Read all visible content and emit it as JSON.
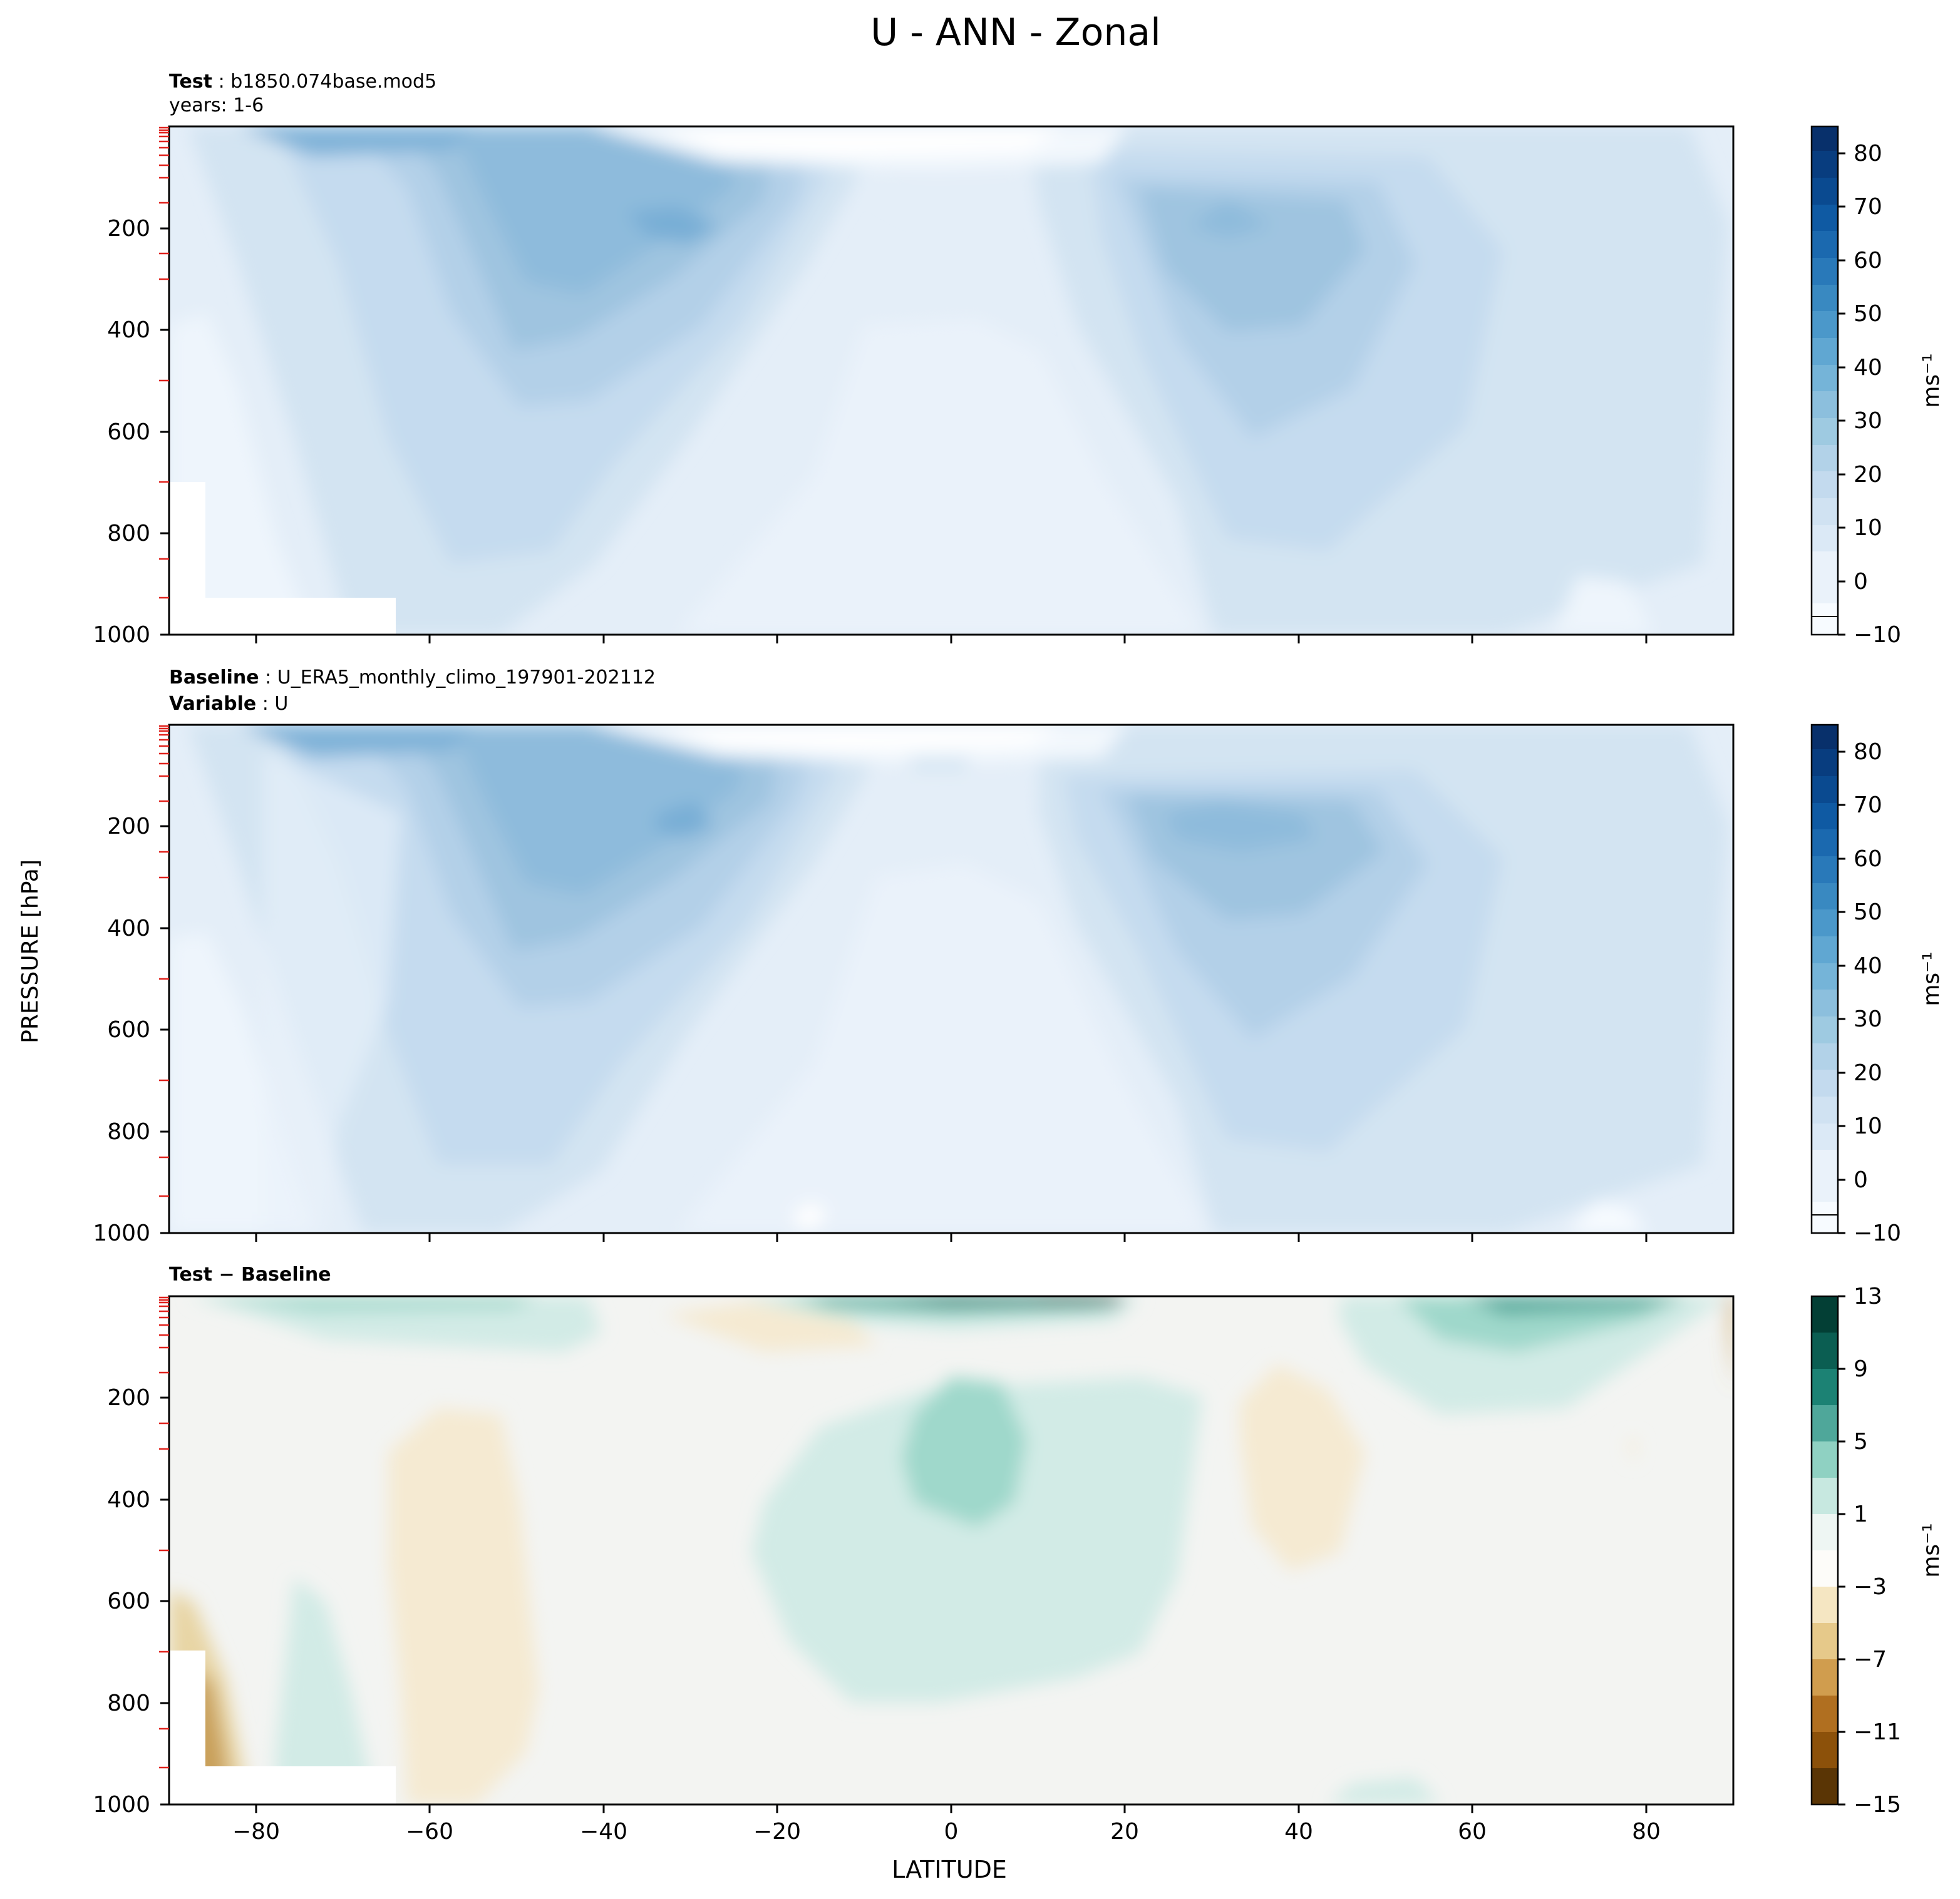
{
  "figure": {
    "title": "U - ANN - Zonal",
    "ylabel": "PRESSURE [hPa]",
    "xlabel": "LATITUDE"
  },
  "panels": [
    {
      "id": "test",
      "header": [
        {
          "bold": "Test",
          "text": " : b1850.074base.mod5"
        },
        {
          "bold": "",
          "text": "years: 1-6"
        }
      ],
      "cbar_label": "ms⁻¹"
    },
    {
      "id": "baseline",
      "header": [
        {
          "bold": "Baseline",
          "text": " : U_ERA5_monthly_climo_197901-202112"
        },
        {
          "bold": "Variable",
          "text": " : U"
        }
      ],
      "cbar_label": "ms⁻¹"
    },
    {
      "id": "diff",
      "header": [
        {
          "bold": "Test − Baseline",
          "text": ""
        }
      ],
      "cbar_label": "ms⁻¹"
    }
  ],
  "chart_data": [
    {
      "type": "heatmap",
      "panel": "test",
      "x_ticks": [
        -80,
        -60,
        -40,
        -20,
        0,
        20,
        40,
        60,
        80
      ],
      "y_ticks": [
        200,
        400,
        600,
        800,
        1000
      ],
      "xlim": [
        -90,
        90
      ],
      "ylim": [
        1000,
        0
      ],
      "colorbar_ticks": [
        -10,
        0,
        10,
        20,
        30,
        40,
        50,
        60,
        70,
        80
      ],
      "colorbar_range": [
        -10,
        85
      ],
      "colormap": "Blues",
      "features": [
        {
          "name": "southern jet max",
          "lat": -30,
          "pressure": 200,
          "value": 40
        },
        {
          "name": "northern jet max",
          "lat": 35,
          "pressure": 200,
          "value": 30
        },
        {
          "name": "equatorial minimum",
          "lat": 5,
          "pressure": 20,
          "value": -10
        }
      ]
    },
    {
      "type": "heatmap",
      "panel": "baseline",
      "x_ticks": [
        -80,
        -60,
        -40,
        -20,
        0,
        20,
        40,
        60,
        80
      ],
      "y_ticks": [
        200,
        400,
        600,
        800,
        1000
      ],
      "xlim": [
        -90,
        90
      ],
      "ylim": [
        1000,
        0
      ],
      "colorbar_ticks": [
        -10,
        0,
        10,
        20,
        30,
        40,
        50,
        60,
        70,
        80
      ],
      "colorbar_range": [
        -10,
        85
      ],
      "colormap": "Blues",
      "features": [
        {
          "name": "southern jet max",
          "lat": -31,
          "pressure": 200,
          "value": 40
        },
        {
          "name": "northern jet max",
          "lat": 37,
          "pressure": 200,
          "value": 35
        },
        {
          "name": "equatorial minimum",
          "lat": 5,
          "pressure": 20,
          "value": -10
        }
      ]
    },
    {
      "type": "heatmap",
      "panel": "diff",
      "x_ticks": [
        -80,
        -60,
        -40,
        -20,
        0,
        20,
        40,
        60,
        80
      ],
      "y_ticks": [
        200,
        400,
        600,
        800,
        1000
      ],
      "xlim": [
        -90,
        90
      ],
      "ylim": [
        1000,
        0
      ],
      "colorbar_ticks": [
        -15,
        -11,
        -7,
        -3,
        1,
        5,
        9,
        13
      ],
      "colorbar_range": [
        -15,
        13
      ],
      "colormap": "BrBG",
      "features": [
        {
          "name": "upper-level positive anomaly",
          "lat": 10,
          "pressure": 20,
          "value": 11
        },
        {
          "name": "tropical positive anomaly",
          "lat": 3,
          "pressure": 300,
          "value": 4
        },
        {
          "name": "southern negative anomaly",
          "lat": -52,
          "pressure": 500,
          "value": -2
        },
        {
          "name": "northern negative anomaly",
          "lat": 40,
          "pressure": 350,
          "value": -2
        }
      ]
    }
  ]
}
